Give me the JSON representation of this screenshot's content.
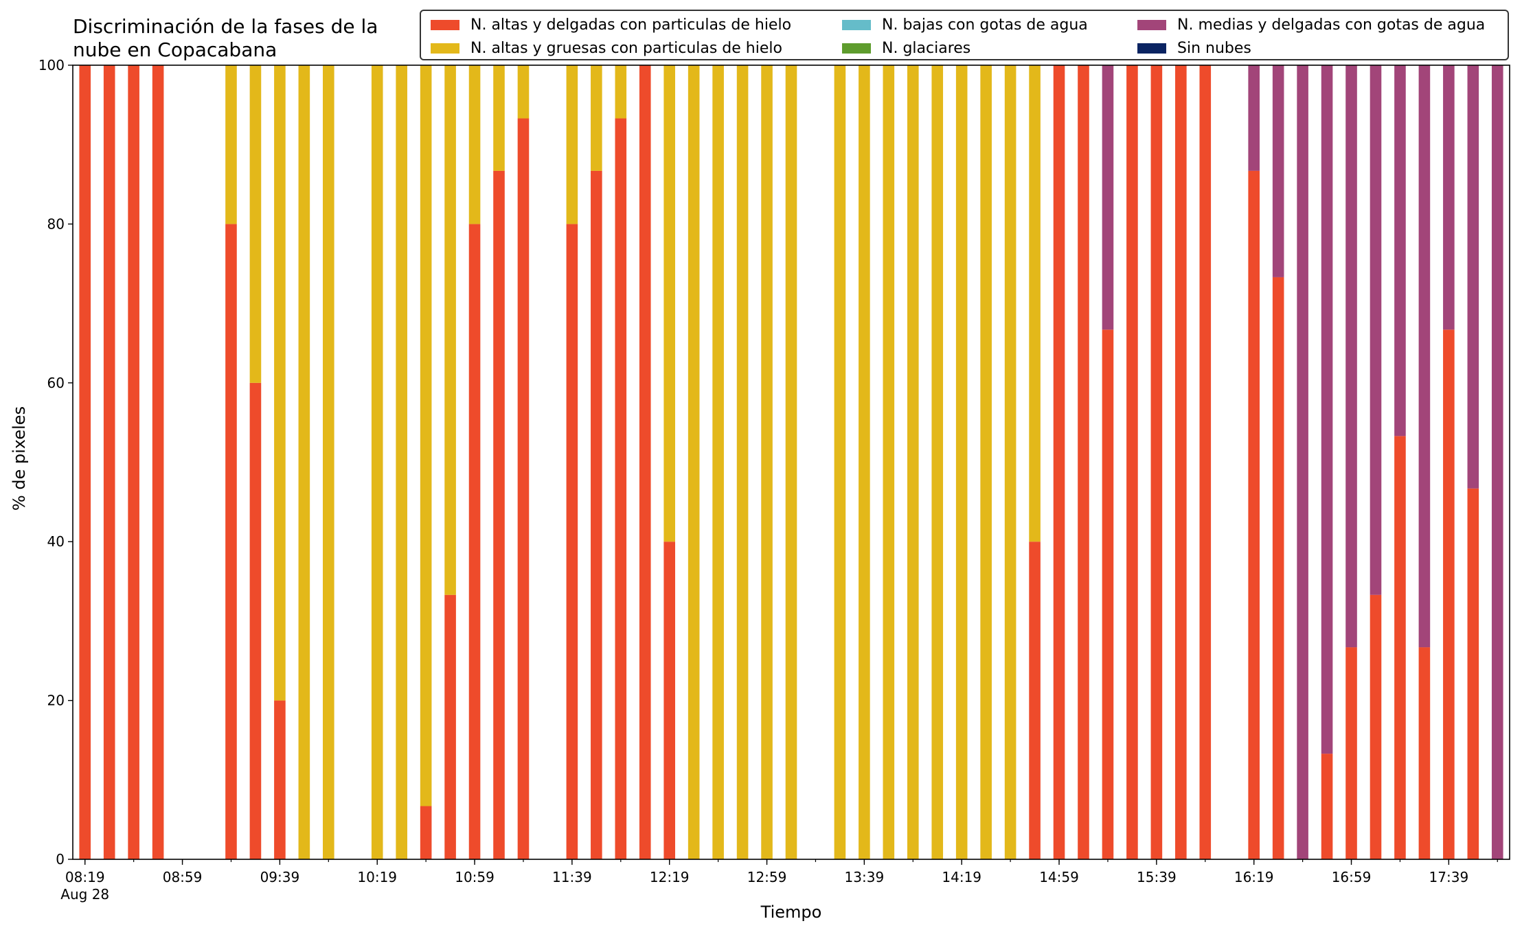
{
  "chart_data": {
    "type": "bar",
    "stacked": true,
    "title": "Discriminación de la fases de la nube en Copacabana",
    "title_lines": [
      "Discriminación de la fases de la",
      "nube en Copacabana"
    ],
    "xlabel": "Tiempo",
    "ylabel": "% de pixeles",
    "ylim": [
      0,
      100
    ],
    "yticks": [
      "0",
      "20",
      "40",
      "60",
      "80",
      "100"
    ],
    "xlim_minutes": [
      -5,
      585
    ],
    "step_minutes": 10,
    "xticks": [
      {
        "label": "08:19",
        "sublabel": "Aug 28",
        "minute": 0
      },
      {
        "label": "08:59",
        "minute": 40
      },
      {
        "label": "09:39",
        "minute": 80
      },
      {
        "label": "10:19",
        "minute": 120
      },
      {
        "label": "10:59",
        "minute": 160
      },
      {
        "label": "11:39",
        "minute": 200
      },
      {
        "label": "12:19",
        "minute": 240
      },
      {
        "label": "12:59",
        "minute": 280
      },
      {
        "label": "13:39",
        "minute": 320
      },
      {
        "label": "14:19",
        "minute": 360
      },
      {
        "label": "14:59",
        "minute": 400
      },
      {
        "label": "15:39",
        "minute": 440
      },
      {
        "label": "16:19",
        "minute": 480
      },
      {
        "label": "16:59",
        "minute": 520
      },
      {
        "label": "17:39",
        "minute": 560
      }
    ],
    "series": [
      {
        "name": "N. altas y delgadas con particulas de hielo",
        "color": "#ee4b2b",
        "values": [
          100,
          100,
          100,
          100,
          null,
          0,
          80,
          60,
          20,
          0,
          0,
          null,
          0,
          0,
          6.7,
          33.3,
          80,
          86.7,
          93.3,
          null,
          80,
          86.7,
          93.3,
          100,
          40,
          0,
          0,
          0,
          0,
          0,
          null,
          0,
          0,
          0,
          0,
          0,
          0,
          0,
          0,
          40,
          100,
          100,
          66.7,
          100,
          100,
          100,
          100,
          null,
          86.7,
          73.3,
          0,
          13.3,
          26.7,
          33.3,
          53.3,
          26.7,
          66.7,
          46.7,
          0
        ]
      },
      {
        "name": "N. altas y gruesas con particulas de hielo",
        "color": "#e3b81a",
        "values": [
          0,
          0,
          0,
          0,
          null,
          0,
          20,
          40,
          80,
          100,
          100,
          null,
          100,
          100,
          93.3,
          66.7,
          20,
          13.3,
          6.7,
          null,
          20,
          13.3,
          6.7,
          0,
          60,
          100,
          100,
          100,
          100,
          100,
          null,
          100,
          100,
          100,
          100,
          100,
          100,
          100,
          100,
          60,
          0,
          0,
          0,
          0,
          0,
          0,
          0,
          null,
          0,
          0,
          0,
          0,
          0,
          0,
          0,
          0,
          0,
          0,
          0
        ]
      },
      {
        "name": "N. bajas con gotas de agua",
        "color": "#65bcc9",
        "values": [
          0,
          0,
          0,
          0,
          null,
          0,
          0,
          0,
          0,
          0,
          0,
          null,
          0,
          0,
          0,
          0,
          0,
          0,
          0,
          null,
          0,
          0,
          0,
          0,
          0,
          0,
          0,
          0,
          0,
          0,
          null,
          0,
          0,
          0,
          0,
          0,
          0,
          0,
          0,
          0,
          0,
          0,
          0,
          0,
          0,
          0,
          0,
          null,
          0,
          0,
          0,
          0,
          0,
          0,
          0,
          0,
          0,
          0,
          0
        ]
      },
      {
        "name": "N. glaciares",
        "color": "#5e9c2d",
        "values": [
          0,
          0,
          0,
          0,
          null,
          0,
          0,
          0,
          0,
          0,
          0,
          null,
          0,
          0,
          0,
          0,
          0,
          0,
          0,
          null,
          0,
          0,
          0,
          0,
          0,
          0,
          0,
          0,
          0,
          0,
          null,
          0,
          0,
          0,
          0,
          0,
          0,
          0,
          0,
          0,
          0,
          0,
          0,
          0,
          0,
          0,
          0,
          null,
          0,
          0,
          0,
          0,
          0,
          0,
          0,
          0,
          0,
          0,
          0
        ]
      },
      {
        "name": "N. medias y delgadas con gotas de agua",
        "color": "#a24579",
        "values": [
          0,
          0,
          0,
          0,
          null,
          0,
          0,
          0,
          0,
          0,
          0,
          null,
          0,
          0,
          0,
          0,
          0,
          0,
          0,
          null,
          0,
          0,
          0,
          0,
          0,
          0,
          0,
          0,
          0,
          0,
          null,
          0,
          0,
          0,
          0,
          0,
          0,
          0,
          0,
          0,
          0,
          0,
          33.3,
          0,
          0,
          0,
          0,
          null,
          13.3,
          26.7,
          100,
          86.7,
          73.3,
          66.7,
          46.7,
          73.3,
          33.3,
          53.3,
          100
        ]
      },
      {
        "name": "Sin nubes",
        "color": "#0b2462",
        "values": [
          0,
          0,
          0,
          0,
          null,
          0,
          0,
          0,
          0,
          0,
          0,
          null,
          0,
          0,
          0,
          0,
          0,
          0,
          0,
          null,
          0,
          0,
          0,
          0,
          0,
          0,
          0,
          0,
          0,
          0,
          null,
          0,
          0,
          0,
          0,
          0,
          0,
          0,
          0,
          0,
          0,
          0,
          0,
          0,
          0,
          0,
          0,
          null,
          0,
          0,
          0,
          0,
          0,
          0,
          0,
          0,
          0,
          0,
          0
        ]
      }
    ],
    "legend_position": "upper-right",
    "grid": false
  }
}
